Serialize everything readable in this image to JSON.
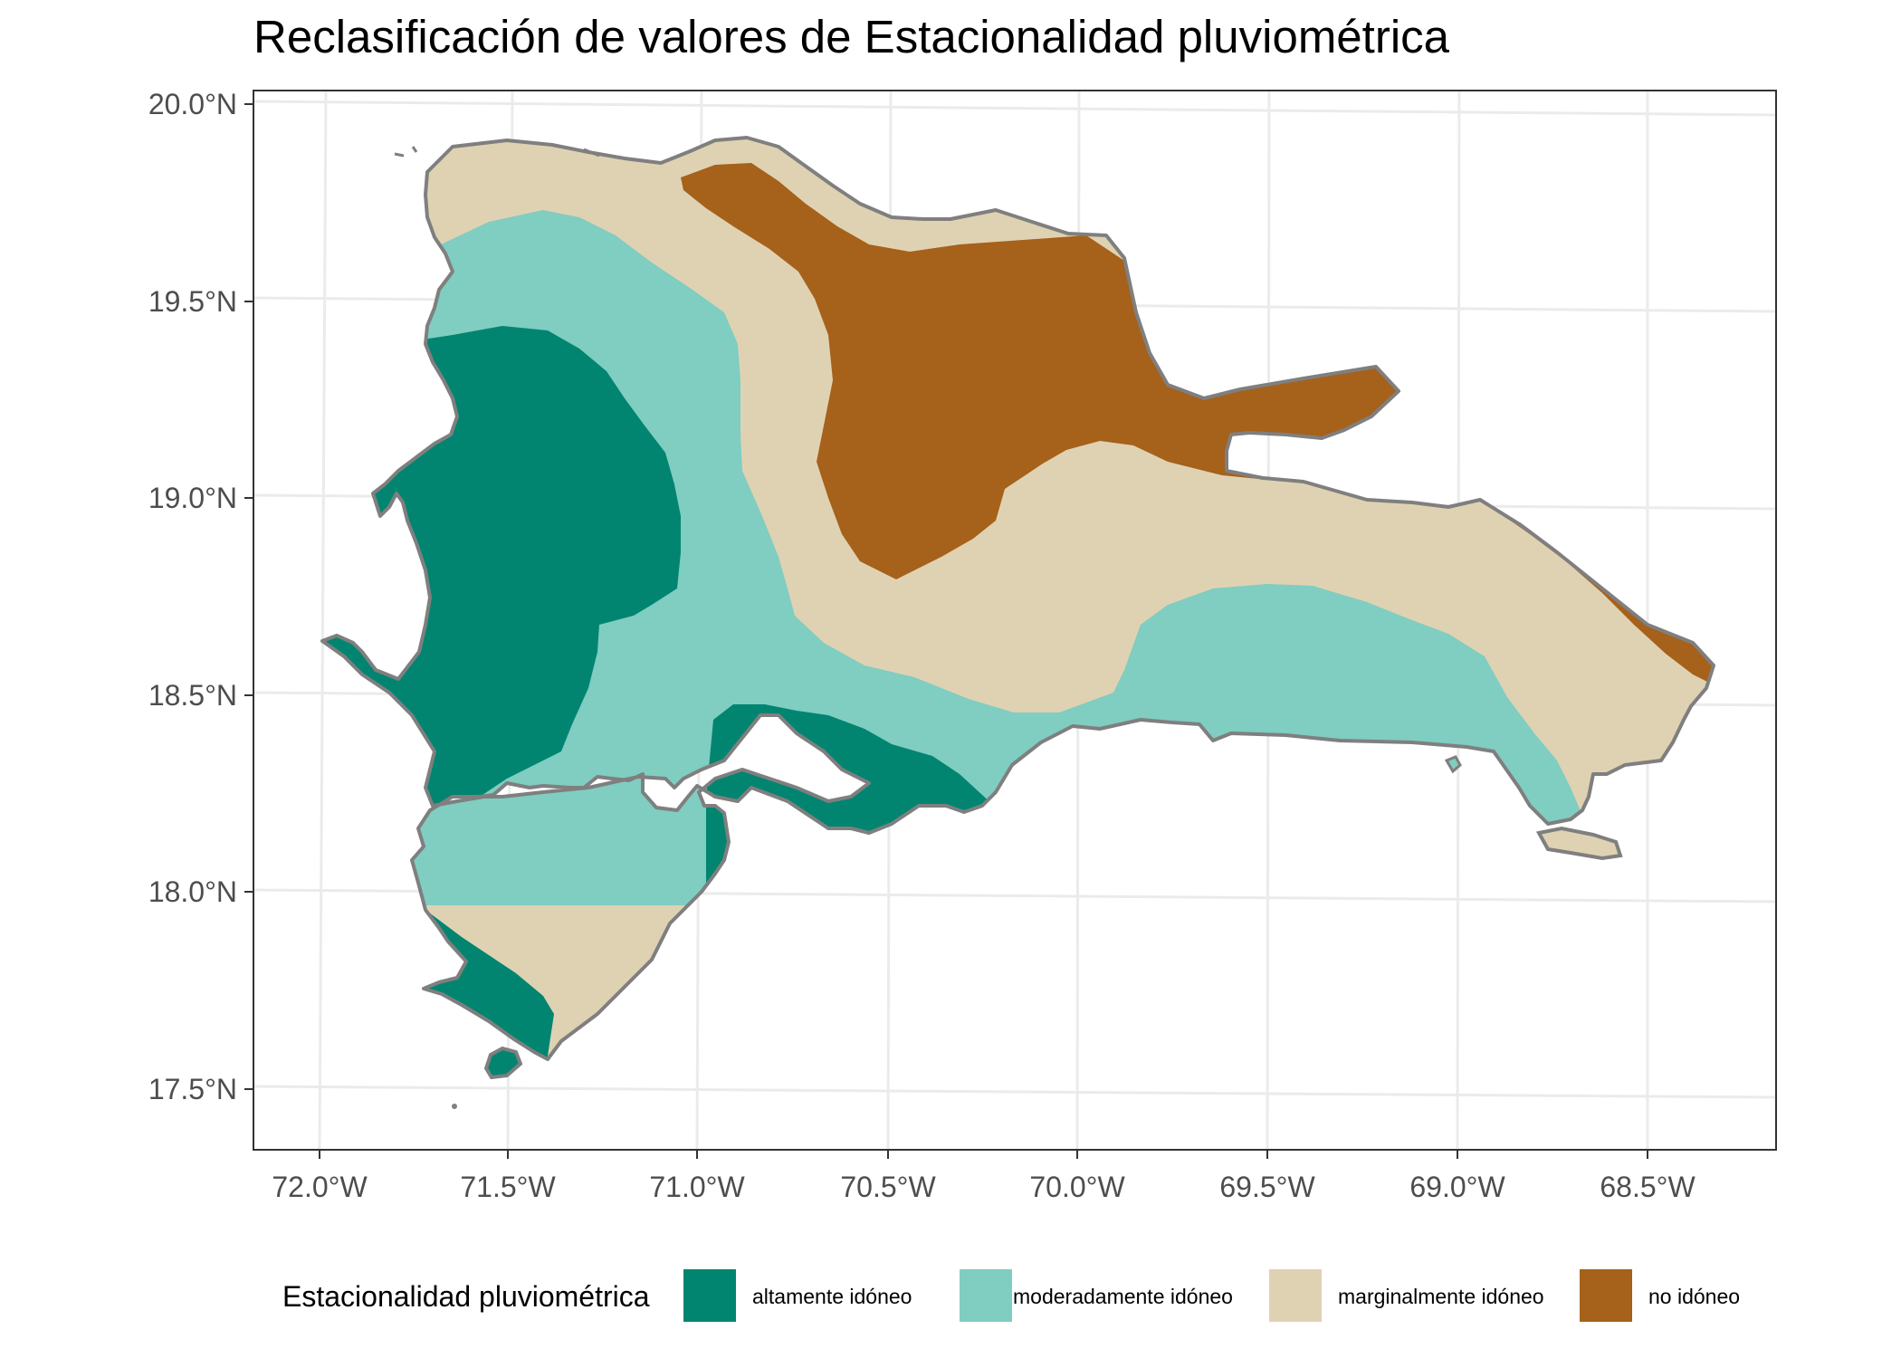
{
  "title": "Reclasificación de valores de Estacionalidad pluviométrica",
  "axes": {
    "x_ticks": [
      "72.0°W",
      "71.5°W",
      "71.0°W",
      "70.5°W",
      "70.0°W",
      "69.5°W",
      "69.0°W",
      "68.5°W"
    ],
    "y_ticks": [
      "20.0°N",
      "19.5°N",
      "19.0°N",
      "18.5°N",
      "18.0°N",
      "17.5°N"
    ],
    "x_range_deg": [
      -72.17,
      -68.15
    ],
    "y_range_deg": [
      17.35,
      20.04
    ],
    "grid": true
  },
  "legend": {
    "title": "Estacionalidad pluviométrica",
    "position": "bottom",
    "items": [
      {
        "label": "altamente idóneo",
        "color": "#018571"
      },
      {
        "label": "moderadamente idóneo",
        "color": "#80cdc1"
      },
      {
        "label": "marginalmente idóneo",
        "color": "#dfd2b3"
      },
      {
        "label": "no idóneo",
        "color": "#a6611a"
      }
    ]
  },
  "colors": {
    "outline": "#7f7f7f",
    "grid": "#ebebeb",
    "panel_border": "#333333"
  }
}
